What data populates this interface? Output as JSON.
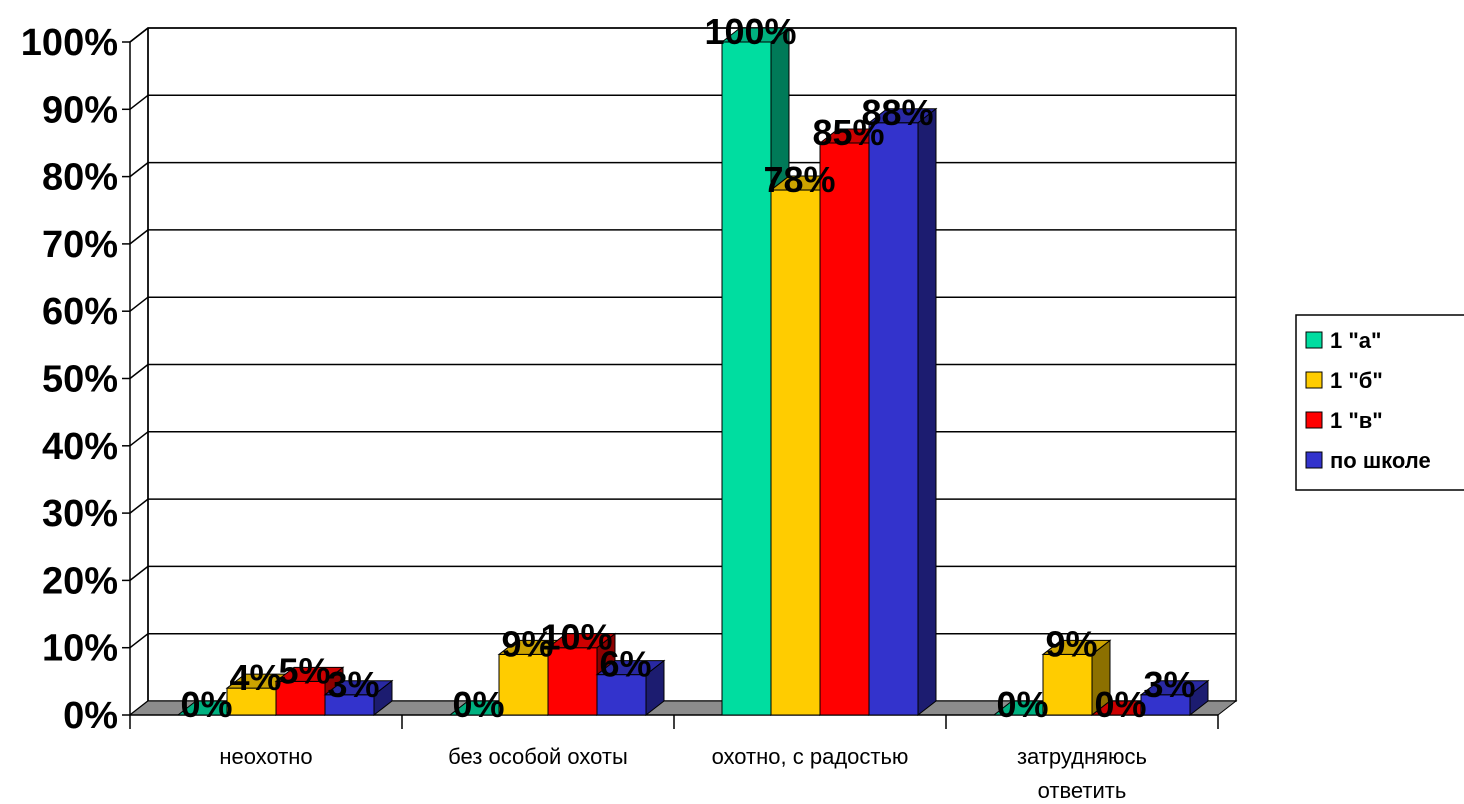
{
  "chart_data": {
    "type": "bar",
    "categories": [
      "неохотно",
      "без особой охоты",
      "охотно, с радостью",
      "затрудняюсь ответить"
    ],
    "category_lines": [
      [
        "неохотно"
      ],
      [
        "без особой охоты"
      ],
      [
        "охотно, с радостью"
      ],
      [
        "затрудняюсь",
        "ответить"
      ]
    ],
    "series": [
      {
        "name": "1 \"а\"",
        "color": "#00DDA0",
        "values": [
          0,
          0,
          100,
          0
        ],
        "labels": [
          "0%",
          "0%",
          "100%",
          "0%"
        ]
      },
      {
        "name": "1 \"б\"",
        "color": "#FFCC00",
        "values": [
          4,
          9,
          78,
          9
        ],
        "labels": [
          "4%",
          "9%",
          "78%",
          "9%"
        ]
      },
      {
        "name": "1 \"в\"",
        "color": "#FF0000",
        "values": [
          5,
          10,
          85,
          0
        ],
        "labels": [
          "5%",
          "10%",
          "85%",
          "0%"
        ]
      },
      {
        "name": "по школе",
        "color": "#3333CC",
        "values": [
          3,
          6,
          88,
          3
        ],
        "labels": [
          "3%",
          "6%",
          "88%",
          "3%"
        ]
      }
    ],
    "yticks": [
      "0%",
      "10%",
      "20%",
      "30%",
      "40%",
      "50%",
      "60%",
      "70%",
      "80%",
      "90%",
      "100%"
    ],
    "ylim": [
      0,
      100
    ],
    "grid": true,
    "legend_position": "right",
    "title": "",
    "xlabel": "",
    "ylabel": ""
  }
}
